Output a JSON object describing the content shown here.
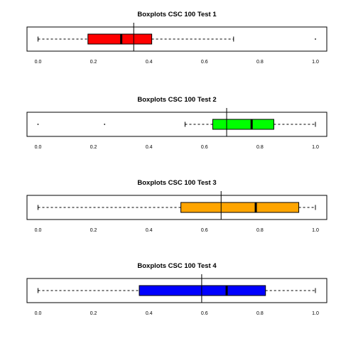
{
  "chart_data": [
    {
      "type": "boxplot",
      "title": "Boxplots CSC 100 Test 1",
      "xlim": [
        0,
        1
      ],
      "ticks": [
        "0.0",
        "0.2",
        "0.4",
        "0.6",
        "0.8",
        "1.0"
      ],
      "whisker_low": 0.0,
      "q1": 0.18,
      "median": 0.3,
      "q3": 0.41,
      "whisker_high": 0.705,
      "outliers": [
        1.0
      ],
      "mean_line": 0.345,
      "fill": "#ff0000"
    },
    {
      "type": "boxplot",
      "title": "Boxplots CSC 100 Test 2",
      "xlim": [
        0,
        1
      ],
      "ticks": [
        "0.0",
        "0.2",
        "0.4",
        "0.6",
        "0.8",
        "1.0"
      ],
      "whisker_low": 0.53,
      "q1": 0.63,
      "median": 0.77,
      "q3": 0.85,
      "whisker_high": 1.0,
      "outliers": [
        0.0,
        0.24
      ],
      "mean_line": 0.68,
      "fill": "#00ff00"
    },
    {
      "type": "boxplot",
      "title": "Boxplots CSC 100 Test 3",
      "xlim": [
        0,
        1
      ],
      "ticks": [
        "0.0",
        "0.2",
        "0.4",
        "0.6",
        "0.8",
        "1.0"
      ],
      "whisker_low": 0.0,
      "q1": 0.515,
      "median": 0.785,
      "q3": 0.94,
      "whisker_high": 1.0,
      "outliers": [],
      "mean_line": 0.66,
      "fill": "#ffa500"
    },
    {
      "type": "boxplot",
      "title": "Boxplots CSC 100 Test 4",
      "xlim": [
        0,
        1
      ],
      "ticks": [
        "0.0",
        "0.2",
        "0.4",
        "0.6",
        "0.8",
        "1.0"
      ],
      "whisker_low": 0.0,
      "q1": 0.365,
      "median": 0.68,
      "q3": 0.82,
      "whisker_high": 1.0,
      "outliers": [],
      "mean_line": 0.59,
      "fill": "#0000ff"
    }
  ]
}
